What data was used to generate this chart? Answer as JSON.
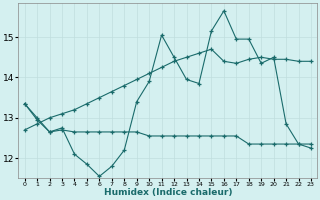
{
  "xlabel": "Humidex (Indice chaleur)",
  "x": [
    0,
    1,
    2,
    3,
    4,
    5,
    6,
    7,
    8,
    9,
    10,
    11,
    12,
    13,
    14,
    15,
    16,
    17,
    18,
    19,
    20,
    21,
    22,
    23
  ],
  "line1_y": [
    13.35,
    13.0,
    12.65,
    12.75,
    12.1,
    11.85,
    11.55,
    11.8,
    12.2,
    13.4,
    13.9,
    15.05,
    14.5,
    13.95,
    13.85,
    15.15,
    15.65,
    14.95,
    14.95,
    14.35,
    14.5,
    12.85,
    12.35,
    12.25
  ],
  "line2_y": [
    13.35,
    12.95,
    12.65,
    12.7,
    12.65,
    12.65,
    12.65,
    12.65,
    12.65,
    12.65,
    12.55,
    12.55,
    12.55,
    12.55,
    12.55,
    12.55,
    12.55,
    12.55,
    12.35,
    12.35,
    12.35,
    12.35,
    12.35,
    12.35
  ],
  "trend_y": [
    12.7,
    12.85,
    13.0,
    13.1,
    13.2,
    13.35,
    13.5,
    13.65,
    13.8,
    13.95,
    14.1,
    14.25,
    14.4,
    14.5,
    14.6,
    14.7,
    14.4,
    14.35,
    14.45,
    14.5,
    14.45,
    14.45,
    14.4,
    14.4
  ],
  "color": "#1a6b6b",
  "bg_color": "#d4f0f0",
  "grid_color": "#c0dede",
  "ylim": [
    11.5,
    15.85
  ],
  "yticks": [
    12,
    13,
    14,
    15
  ],
  "marker": "+"
}
